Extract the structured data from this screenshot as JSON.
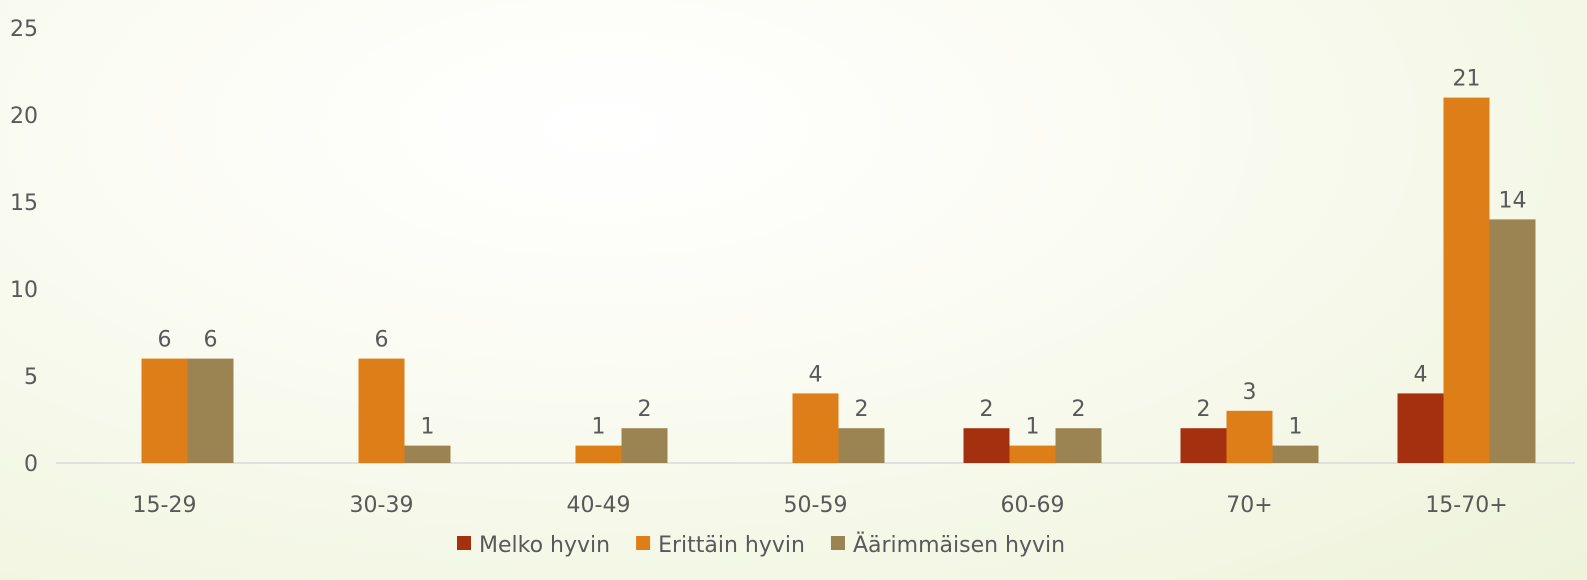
{
  "chart_data": {
    "type": "bar",
    "categories": [
      "15-29",
      "30-39",
      "40-49",
      "50-59",
      "60-69",
      "70+",
      "15-70+"
    ],
    "series": [
      {
        "name": "Melko hyvin",
        "color": "#a5300f",
        "values": [
          null,
          null,
          null,
          null,
          2,
          2,
          4
        ]
      },
      {
        "name": "Erittäin hyvin",
        "color": "#de7e18",
        "values": [
          6,
          6,
          1,
          4,
          1,
          3,
          21
        ]
      },
      {
        "name": "Äärimmäisen hyvin",
        "color": "#9c8352",
        "values": [
          6,
          1,
          2,
          2,
          2,
          1,
          14
        ]
      }
    ],
    "yticks": [
      0,
      5,
      10,
      15,
      20,
      25
    ],
    "ylim": [
      0,
      25
    ],
    "title": "",
    "xlabel": "",
    "ylabel": "",
    "legend_position": "bottom",
    "grid": false
  }
}
